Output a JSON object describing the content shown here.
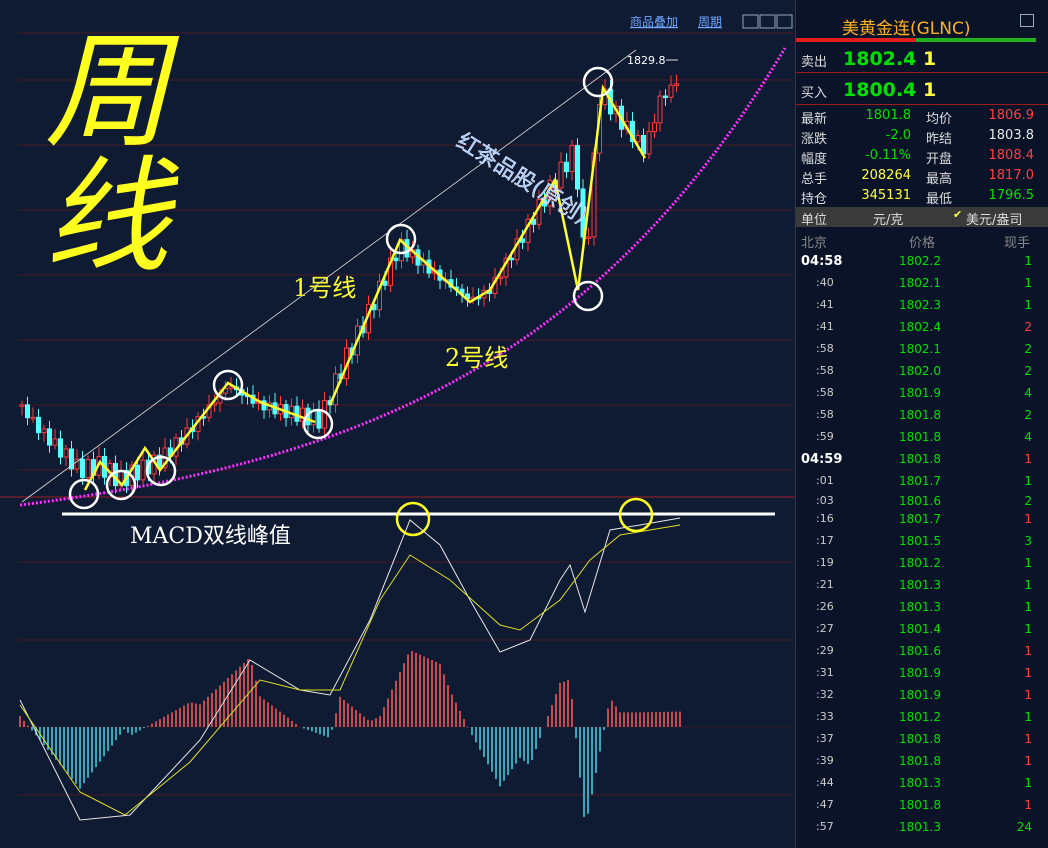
{
  "toolbar": {
    "overlay": "商品叠加",
    "period": "周期"
  },
  "chart": {
    "title_annotation": "周线",
    "watermark": "红茶品股(原创)",
    "line1": "1号线",
    "line2": "2号线",
    "macd_note": "MACD双线峰值",
    "high_label": "1829.8"
  },
  "quote": {
    "title": "美黄金连(GLNC)",
    "sell": {
      "label": "卖出",
      "price": "1802.4",
      "qty": "1"
    },
    "buy": {
      "label": "买入",
      "price": "1800.4",
      "qty": "1"
    },
    "stats": [
      {
        "label": "最新",
        "value": "1801.8",
        "color": "#00e000"
      },
      {
        "label": "均价",
        "value": "1806.9",
        "color": "#ff4040"
      },
      {
        "label": "涨跌",
        "value": "-2.0",
        "color": "#00e000"
      },
      {
        "label": "昨结",
        "value": "1803.8",
        "color": "#e8e8e8"
      },
      {
        "label": "幅度",
        "value": "-0.11%",
        "color": "#00e000"
      },
      {
        "label": "开盘",
        "value": "1808.4",
        "color": "#ff4040"
      },
      {
        "label": "总手",
        "value": "208264",
        "color": "#ffff40"
      },
      {
        "label": "最高",
        "value": "1817.0",
        "color": "#ff4040"
      },
      {
        "label": "持仓",
        "value": "345131",
        "color": "#ffff40"
      },
      {
        "label": "最低",
        "value": "1796.5",
        "color": "#00e000"
      }
    ],
    "unit": {
      "label": "单位",
      "cny": "元/克",
      "usd": "美元/盎司"
    }
  },
  "ticks": {
    "columns": [
      "北京",
      "价格",
      "现手"
    ],
    "rows": [
      {
        "time": "04:58",
        "price": "1802.2",
        "volume": "1",
        "color": "#00e000"
      },
      {
        "time": ":40",
        "price": "1802.1",
        "volume": "1",
        "color": "#00e000"
      },
      {
        "time": ":41",
        "price": "1802.3",
        "volume": "1",
        "color": "#00e000"
      },
      {
        "time": ":41",
        "price": "1802.4",
        "volume": "2",
        "color": "#ff4040"
      },
      {
        "time": ":58",
        "price": "1802.1",
        "volume": "2",
        "color": "#00e000"
      },
      {
        "time": ":58",
        "price": "1802.0",
        "volume": "2",
        "color": "#00e000"
      },
      {
        "time": ":58",
        "price": "1801.9",
        "volume": "4",
        "color": "#00e000"
      },
      {
        "time": ":58",
        "price": "1801.8",
        "volume": "2",
        "color": "#00e000"
      },
      {
        "time": ":59",
        "price": "1801.8",
        "volume": "4",
        "color": "#00e000"
      },
      {
        "time": "04:59",
        "price": "1801.8",
        "volume": "1",
        "color": "#ff4040"
      },
      {
        "time": ":01",
        "price": "1801.7",
        "volume": "1",
        "color": "#00e000"
      },
      {
        "time": ":03",
        "price": "1801.6",
        "volume": "2",
        "color": "#00e000"
      },
      {
        "time": ":16",
        "price": "1801.7",
        "volume": "1",
        "color": "#ff4040"
      },
      {
        "time": ":17",
        "price": "1801.5",
        "volume": "3",
        "color": "#00e000"
      },
      {
        "time": ":19",
        "price": "1801.2",
        "volume": "1",
        "color": "#00e000"
      },
      {
        "time": ":21",
        "price": "1801.3",
        "volume": "1",
        "color": "#00e000"
      },
      {
        "time": ":26",
        "price": "1801.3",
        "volume": "1",
        "color": "#00e000"
      },
      {
        "time": ":27",
        "price": "1801.4",
        "volume": "1",
        "color": "#00e000"
      },
      {
        "time": ":29",
        "price": "1801.6",
        "volume": "1",
        "color": "#ff4040"
      },
      {
        "time": ":31",
        "price": "1801.9",
        "volume": "1",
        "color": "#ff4040"
      },
      {
        "time": ":32",
        "price": "1801.9",
        "volume": "1",
        "color": "#ff4040"
      },
      {
        "time": ":33",
        "price": "1801.2",
        "volume": "1",
        "color": "#00e000"
      },
      {
        "time": ":37",
        "price": "1801.8",
        "volume": "1",
        "color": "#ff4040"
      },
      {
        "time": ":39",
        "price": "1801.8",
        "volume": "1",
        "color": "#ff4040"
      },
      {
        "time": ":44",
        "price": "1801.3",
        "volume": "1",
        "color": "#00e000"
      },
      {
        "time": ":47",
        "price": "1801.8",
        "volume": "1",
        "color": "#ff4040"
      },
      {
        "time": ":57",
        "price": "1801.3",
        "volume": "24",
        "color": "#00e000"
      }
    ]
  }
}
